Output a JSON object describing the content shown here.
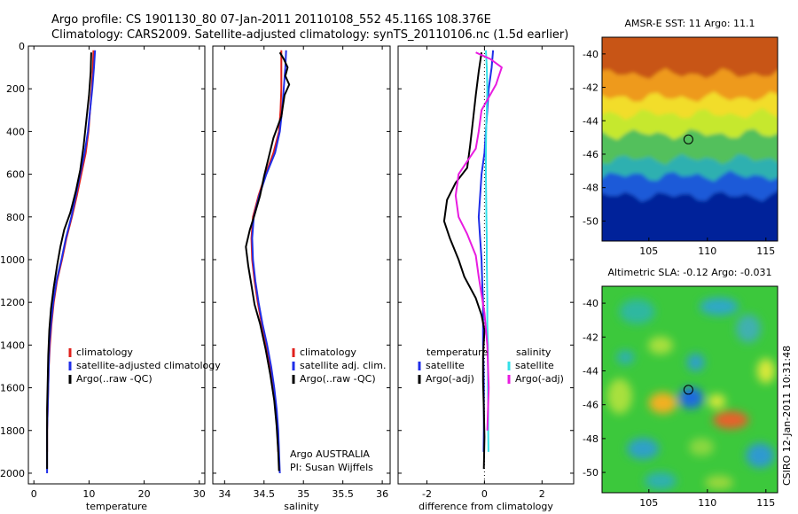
{
  "figure": {
    "title_line1": "Argo profile: CS 1901130_80 07-Jan-2011 20110108_552 45.116S 108.376E",
    "title_line2": "Climatology: CARS2009. Satellite-adjusted climatology: synTS_20110106.nc (1.5d earlier)",
    "side_label": "CSIRO 12-Jan-2011 10:31:48",
    "attribution_line1": "Argo AUSTRALIA",
    "attribution_line2": "PI: Susan Wijffels"
  },
  "colors": {
    "climatology": "#e0201c",
    "satellite": "#1f2ee8",
    "argo": "#000000",
    "satellite_salinity": "#33e0e8",
    "argo_salinity_diff": "#e81ce0",
    "zero_line": "#33e0e8"
  },
  "chart_data": [
    {
      "type": "line",
      "name": "temperature-profile",
      "xlabel": "temperature",
      "ylabel": "",
      "xlim": [
        -1,
        31
      ],
      "ylim": [
        2050,
        0
      ],
      "xticks": [
        0,
        10,
        20,
        30
      ],
      "yticks": [
        0,
        200,
        400,
        600,
        800,
        1000,
        1200,
        1400,
        1600,
        1800,
        2000
      ],
      "legend": {
        "position": "lower-center",
        "entries": [
          "climatology",
          "satellite-adjusted climatology",
          "Argo(..raw -QC)"
        ]
      },
      "series": [
        {
          "name": "climatology",
          "color_key": "climatology",
          "x": [
            10.8,
            10.7,
            10.5,
            10.2,
            9.9,
            9.4,
            8.6,
            7.8,
            6.9,
            5.9,
            5.1,
            4.2,
            3.6,
            3.2,
            2.9,
            2.7,
            2.6,
            2.5,
            2.4,
            2.4
          ],
          "y": [
            20,
            100,
            200,
            300,
            400,
            500,
            600,
            700,
            800,
            900,
            1000,
            1100,
            1200,
            1300,
            1400,
            1500,
            1600,
            1700,
            1800,
            1900
          ]
        },
        {
          "name": "satellite-adjusted climatology",
          "color_key": "satellite",
          "x": [
            11.1,
            10.9,
            10.6,
            10.2,
            9.8,
            9.2,
            8.4,
            7.6,
            6.8,
            5.8,
            5.0,
            4.1,
            3.5,
            3.1,
            2.8,
            2.7,
            2.6,
            2.5,
            2.4,
            2.4,
            2.4
          ],
          "y": [
            20,
            100,
            200,
            300,
            400,
            500,
            600,
            700,
            800,
            900,
            1000,
            1100,
            1200,
            1300,
            1400,
            1500,
            1600,
            1700,
            1800,
            1900,
            2000
          ]
        },
        {
          "name": "Argo(..raw -QC)",
          "color_key": "argo",
          "x": [
            10.4,
            10.3,
            10.0,
            9.5,
            9.0,
            8.4,
            7.6,
            6.6,
            5.5,
            4.8,
            4.2,
            3.6,
            3.1,
            2.8,
            2.6,
            2.5,
            2.4,
            2.4,
            2.4
          ],
          "y": [
            30,
            120,
            230,
            350,
            470,
            580,
            680,
            780,
            860,
            940,
            1030,
            1130,
            1230,
            1330,
            1450,
            1570,
            1700,
            1830,
            1980
          ]
        }
      ]
    },
    {
      "type": "line",
      "name": "salinity-profile",
      "xlabel": "salinity",
      "xlim": [
        33.85,
        36.1
      ],
      "ylim": [
        2050,
        0
      ],
      "xticks": [
        34,
        34.5,
        35,
        35.5,
        36
      ],
      "legend": {
        "position": "lower-center",
        "entries": [
          "climatology",
          "satellite adj. clim.",
          "Argo(..raw -QC)"
        ]
      },
      "series": [
        {
          "name": "climatology",
          "color_key": "climatology",
          "x": [
            34.72,
            34.72,
            34.72,
            34.71,
            34.69,
            34.62,
            34.52,
            34.43,
            34.36,
            34.34,
            34.35,
            34.38,
            34.42,
            34.47,
            34.53,
            34.58,
            34.62,
            34.65,
            34.67,
            34.68
          ],
          "y": [
            20,
            100,
            200,
            300,
            400,
            500,
            600,
            700,
            800,
            900,
            1000,
            1100,
            1200,
            1300,
            1400,
            1500,
            1600,
            1700,
            1800,
            1900
          ]
        },
        {
          "name": "satellite adj. clim.",
          "color_key": "satellite",
          "x": [
            34.78,
            34.77,
            34.75,
            34.73,
            34.7,
            34.64,
            34.53,
            34.44,
            34.37,
            34.35,
            34.36,
            34.39,
            34.43,
            34.48,
            34.54,
            34.59,
            34.63,
            34.66,
            34.68,
            34.69,
            34.7
          ],
          "y": [
            20,
            100,
            200,
            300,
            400,
            500,
            600,
            700,
            800,
            900,
            1000,
            1100,
            1200,
            1300,
            1400,
            1500,
            1600,
            1700,
            1800,
            1900,
            2000
          ]
        },
        {
          "name": "Argo(..raw -QC)",
          "color_key": "argo",
          "x": [
            34.7,
            34.75,
            34.8,
            34.77,
            34.82,
            34.76,
            34.72,
            34.62,
            34.56,
            34.5,
            34.45,
            34.38,
            34.32,
            34.27,
            34.3,
            34.34,
            34.38,
            34.45,
            34.52,
            34.58,
            34.63,
            34.66,
            34.68,
            34.69
          ],
          "y": [
            30,
            60,
            100,
            140,
            180,
            230,
            330,
            430,
            520,
            610,
            700,
            790,
            860,
            940,
            1030,
            1120,
            1210,
            1300,
            1420,
            1540,
            1660,
            1780,
            1900,
            1990
          ]
        }
      ]
    },
    {
      "type": "line",
      "name": "difference-profile",
      "xlabel": "difference from climatology",
      "xlim": [
        -3,
        3.1
      ],
      "ylim": [
        2050,
        0
      ],
      "xticks": [
        -2,
        0,
        2
      ],
      "legend": {
        "position": "lower-center",
        "entries": [
          "temperature",
          "satellite",
          "Argo(-adj)",
          "salinity",
          "satellite",
          "Argo(-adj)"
        ]
      },
      "series": [
        {
          "name": "temperature satellite",
          "color_key": "satellite",
          "x": [
            0.3,
            0.25,
            0.15,
            0.1,
            0.05,
            0.0,
            -0.1,
            -0.15,
            -0.2,
            -0.15,
            -0.1,
            -0.08,
            -0.05,
            -0.05,
            -0.05,
            -0.03,
            -0.02,
            -0.02,
            -0.02,
            -0.03
          ],
          "y": [
            20,
            100,
            200,
            300,
            400,
            500,
            600,
            700,
            800,
            900,
            1000,
            1100,
            1200,
            1300,
            1400,
            1500,
            1600,
            1700,
            1800,
            1900
          ]
        },
        {
          "name": "temperature Argo(-adj)",
          "color_key": "argo",
          "x": [
            -0.1,
            -0.2,
            -0.3,
            -0.4,
            -0.5,
            -0.6,
            -1.0,
            -1.3,
            -1.4,
            -1.2,
            -0.9,
            -0.7,
            -0.3,
            -0.1,
            0.0,
            -0.05,
            -0.05,
            -0.02,
            0.0,
            -0.02
          ],
          "y": [
            30,
            120,
            230,
            350,
            470,
            570,
            640,
            720,
            820,
            900,
            1000,
            1080,
            1180,
            1260,
            1330,
            1450,
            1570,
            1700,
            1830,
            1980
          ]
        },
        {
          "name": "salinity satellite",
          "color_key": "satellite_salinity",
          "x": [
            0.05,
            0.08,
            0.1,
            0.08,
            0.06,
            0.05,
            0.05,
            0.06,
            0.07,
            0.08,
            0.08,
            0.09,
            0.1,
            0.1,
            0.12,
            0.12,
            0.12,
            0.13,
            0.13,
            0.14
          ],
          "y": [
            20,
            100,
            200,
            300,
            400,
            500,
            600,
            700,
            800,
            900,
            1000,
            1100,
            1200,
            1300,
            1400,
            1500,
            1600,
            1700,
            1800,
            1900
          ]
        },
        {
          "name": "salinity Argo(-adj)",
          "color_key": "argo_salinity_diff",
          "x": [
            -0.3,
            0.2,
            0.6,
            0.5,
            0.4,
            -0.1,
            -0.2,
            -0.3,
            -0.6,
            -0.9,
            -1.0,
            -0.9,
            -0.6,
            -0.3,
            -0.2,
            0.0,
            0.1,
            0.15,
            0.1
          ],
          "y": [
            30,
            60,
            100,
            140,
            180,
            300,
            400,
            480,
            540,
            600,
            700,
            800,
            880,
            980,
            1080,
            1250,
            1400,
            1600,
            1800
          ]
        }
      ]
    },
    {
      "type": "heatmap",
      "name": "amsr-sst-map",
      "title": "AMSR-E SST: 11 Argo: 11.1",
      "xlim": [
        101,
        116
      ],
      "ylim": [
        -51.2,
        -39
      ],
      "xticks": [
        105,
        110,
        115
      ],
      "yticks": [
        -40,
        -42,
        -44,
        -46,
        -48,
        -50
      ],
      "marker": {
        "lon": 108.376,
        "lat": -45.116
      },
      "bands": [
        {
          "from": -39,
          "to": -41.2,
          "color": "#c85418"
        },
        {
          "from": -41.2,
          "to": -42.6,
          "color": "#ee9a1a"
        },
        {
          "from": -42.6,
          "to": -43.6,
          "color": "#f2dd2a"
        },
        {
          "from": -43.6,
          "to": -44.8,
          "color": "#c6e82e"
        },
        {
          "from": -44.8,
          "to": -46.3,
          "color": "#52c05c"
        },
        {
          "from": -46.3,
          "to": -47.3,
          "color": "#2fb0b0"
        },
        {
          "from": -47.3,
          "to": -48.5,
          "color": "#1a5ad8"
        },
        {
          "from": -48.5,
          "to": -51.2,
          "color": "#06229a"
        }
      ]
    },
    {
      "type": "heatmap",
      "name": "altimetric-sla-map",
      "title": "Altimetric SLA: -0.12 Argo: -0.031",
      "xlim": [
        101,
        116
      ],
      "ylim": [
        -51.2,
        -39
      ],
      "xticks": [
        105,
        110,
        115
      ],
      "yticks": [
        -40,
        -42,
        -44,
        -46,
        -48,
        -50
      ],
      "marker": {
        "lon": 108.376,
        "lat": -45.116
      },
      "background": "#3cc83c"
    }
  ]
}
